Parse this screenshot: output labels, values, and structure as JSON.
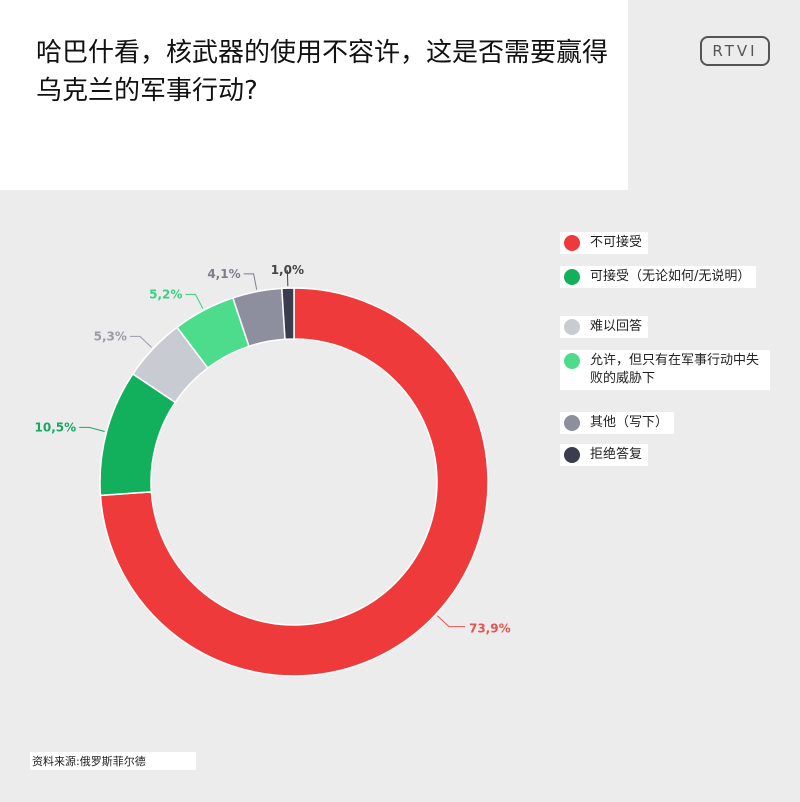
{
  "title": "哈巴什看，核武器的使用不容许，这是否需要赢得乌克兰的军事行动?",
  "logo": "RTVI",
  "source": "资料来源:俄罗斯菲尔德",
  "chart_data": {
    "type": "pie",
    "donut": true,
    "title": "哈巴什看，核武器的使用不容许，这是否需要赢得乌克兰的军事行动?",
    "legend_position": "right",
    "slices": [
      {
        "name": "不可接受",
        "value": 73.9,
        "label": "73,9%",
        "color": "#ee3a3a",
        "label_color": "#e05555"
      },
      {
        "name": "可接受（无论如何/无说明）",
        "value": 10.5,
        "label": "10,5%",
        "color": "#12b05c",
        "label_color": "#19a862"
      },
      {
        "name": "难以回答",
        "value": 5.3,
        "label": "5,3%",
        "color": "#c9cbd2",
        "label_color": "#9a9ba5"
      },
      {
        "name": "允许，但只有在军事行动中失败的威胁下",
        "value": 5.2,
        "label": "5,2%",
        "color": "#4ddc8c",
        "label_color": "#3ccf80"
      },
      {
        "name": "其他（写下）",
        "value": 4.1,
        "label": "4,1%",
        "color": "#8e8f9e",
        "label_color": "#7d7e8c"
      },
      {
        "name": "拒绝答复",
        "value": 1.0,
        "label": "1,0%",
        "color": "#3a3d4e",
        "label_color": "#444"
      }
    ]
  }
}
